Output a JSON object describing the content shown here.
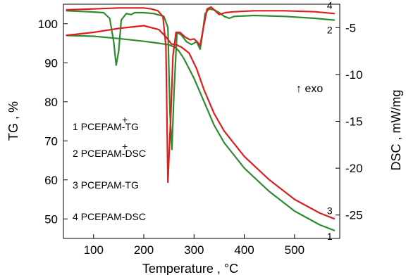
{
  "chart_data": {
    "type": "line",
    "xlabel": "Temperature , °C",
    "ylabel_left": "TG , %",
    "ylabel_right": "DSC , mW/mg",
    "xlim": [
      40,
      590
    ],
    "ylim_left": [
      45,
      105
    ],
    "ylim_right": [
      -27.5,
      -2.5
    ],
    "x_ticks": [
      100,
      200,
      300,
      400,
      500
    ],
    "y_left_ticks": [
      50,
      60,
      70,
      80,
      90,
      100
    ],
    "y_right_ticks": [
      -5,
      -10,
      -15,
      -20,
      -25
    ],
    "annotation": "↑ exo",
    "legend": [
      {
        "num": "1",
        "text": "PCEPAM",
        "mark": "+",
        "suffix": "-TG"
      },
      {
        "num": "2",
        "text": "PCEPAM",
        "mark": "+",
        "suffix": "-DSC"
      },
      {
        "num": "3",
        "text": "PCEPAM-TG",
        "mark": "",
        "suffix": ""
      },
      {
        "num": "4",
        "text": "PCEPAM-DSC",
        "mark": "",
        "suffix": ""
      }
    ],
    "series": [
      {
        "name": "1",
        "label": "1",
        "color": "#2e8b2e",
        "axis": "left",
        "x": [
          45,
          100,
          150,
          200,
          230,
          250,
          262,
          270,
          280,
          300,
          320,
          340,
          360,
          400,
          450,
          500,
          550,
          580
        ],
        "y": [
          97,
          96.8,
          96.2,
          95.5,
          95.0,
          94.6,
          94.0,
          93.0,
          91.0,
          86.0,
          80.0,
          74.0,
          69.5,
          63.0,
          57.0,
          52.0,
          48.5,
          47.0
        ]
      },
      {
        "name": "2",
        "label": "2",
        "color": "#2e8b2e",
        "axis": "right",
        "x": [
          45,
          90,
          120,
          132,
          140,
          145,
          150,
          155,
          165,
          175,
          182,
          190,
          200,
          220,
          240,
          248,
          252,
          256,
          260,
          266,
          275,
          285,
          295,
          305,
          312,
          316,
          322,
          330,
          340,
          350,
          360,
          370,
          380,
          420,
          480,
          540,
          580
        ],
        "y": [
          -3.2,
          -3.3,
          -3.4,
          -4.0,
          -6.5,
          -9.0,
          -7.5,
          -4.2,
          -3.5,
          -3.6,
          -3.4,
          -3.4,
          -3.4,
          -3.5,
          -3.8,
          -5.0,
          -14.0,
          -18.0,
          -12.0,
          -5.5,
          -5.8,
          -6.5,
          -6.8,
          -6.5,
          -7.3,
          -6.0,
          -3.5,
          -3.0,
          -3.1,
          -3.4,
          -3.8,
          -4.0,
          -3.8,
          -3.7,
          -3.8,
          -4.0,
          -4.2
        ]
      },
      {
        "name": "3",
        "label": "3",
        "color": "#dc1e1e",
        "axis": "left",
        "x": [
          45,
          100,
          150,
          200,
          230,
          245,
          255,
          265,
          275,
          290,
          305,
          320,
          340,
          360,
          400,
          450,
          500,
          550,
          580
        ],
        "y": [
          97.0,
          97.8,
          98.8,
          99.5,
          98.5,
          96.5,
          94.8,
          94.6,
          94.0,
          92.5,
          88.5,
          83.0,
          77.0,
          72.5,
          66.0,
          60.0,
          55.0,
          51.5,
          50.0
        ]
      },
      {
        "name": "4",
        "label": "4",
        "color": "#dc1e1e",
        "axis": "right",
        "x": [
          45,
          100,
          150,
          200,
          215,
          228,
          238,
          244,
          248,
          254,
          258,
          264,
          272,
          282,
          292,
          300,
          306,
          312,
          318,
          326,
          334,
          342,
          350,
          362,
          380,
          420,
          480,
          540,
          580
        ],
        "y": [
          -3.1,
          -3.0,
          -2.9,
          -2.9,
          -3.0,
          -3.2,
          -3.8,
          -7.0,
          -21.5,
          -14.0,
          -8.0,
          -5.5,
          -5.5,
          -6.0,
          -6.3,
          -6.2,
          -6.5,
          -6.9,
          -5.2,
          -3.0,
          -2.8,
          -3.2,
          -3.6,
          -3.4,
          -3.3,
          -3.2,
          -3.2,
          -3.3,
          -3.5
        ]
      }
    ]
  }
}
